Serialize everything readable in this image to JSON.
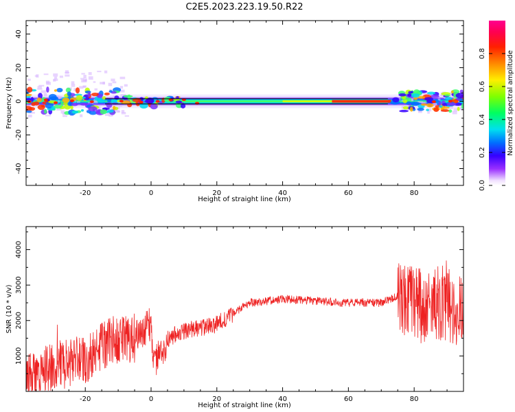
{
  "title": "C2E5.2023.223.19.50.R22",
  "chart_data": [
    {
      "type": "heatmap",
      "xlabel": "Height of straight line (km)",
      "ylabel": "Frequency (Hz)",
      "xlim": [
        -38,
        95
      ],
      "ylim": [
        -50,
        48
      ],
      "xticks": [
        -20,
        0,
        20,
        40,
        60,
        80
      ],
      "yticks": [
        -40,
        -20,
        0,
        20,
        40
      ],
      "colorbar": {
        "label": "Normalized spectral amplitude",
        "range": [
          0.0,
          1.0
        ],
        "ticks": [
          0.0,
          0.2,
          0.4,
          0.6,
          0.8
        ],
        "colormap": "rainbow (white-purple-blue-cyan-green-yellow-orange-red-magenta)"
      },
      "ridge": {
        "description": "frequency ridge around 0 Hz",
        "frequency_hz": 0,
        "peak_amplitude_height_km": [
          55,
          73
        ],
        "reference_lines_hz": [
          1.5,
          -1.5
        ],
        "reference_lines_x_range_km": [
          -14,
          72
        ]
      }
    },
    {
      "type": "line",
      "xlabel": "Height of straight line (km)",
      "ylabel": "SNR (10 * v/v)",
      "xlim": [
        -38,
        95
      ],
      "ylim": [
        0,
        4650
      ],
      "xticks": [
        -20,
        0,
        20,
        40,
        60,
        80
      ],
      "yticks": [
        1000,
        2000,
        3000,
        4000
      ],
      "color": "#ee2222",
      "envelope": {
        "x": [
          -38,
          -30,
          -20,
          -15,
          -10,
          -5,
          0,
          1,
          5,
          10,
          20,
          25,
          30,
          40,
          50,
          60,
          70,
          75,
          80,
          85,
          90,
          95
        ],
        "y": [
          400,
          700,
          900,
          1300,
          1500,
          1500,
          1900,
          700,
          1500,
          1700,
          1900,
          2200,
          2500,
          2600,
          2550,
          2500,
          2500,
          2700,
          2500,
          2400,
          2500,
          2300
        ]
      }
    }
  ]
}
